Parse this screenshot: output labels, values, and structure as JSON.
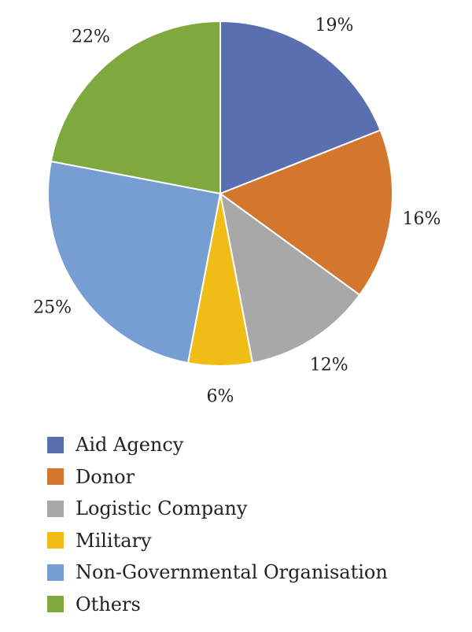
{
  "chart_data": {
    "type": "pie",
    "slices": [
      {
        "label": "Aid Agency",
        "value": 19,
        "value_label": "19%",
        "color": "#5a6fb0"
      },
      {
        "label": "Donor",
        "value": 16,
        "value_label": "16%",
        "color": "#d2772d"
      },
      {
        "label": "Logistic Company",
        "value": 12,
        "value_label": "12%",
        "color": "#a8a8a8"
      },
      {
        "label": "Military",
        "value": 6,
        "value_label": "6%",
        "color": "#efbd16"
      },
      {
        "label": "Non-Governmental Organisation",
        "value": 25,
        "value_label": "25%",
        "color": "#779ed3"
      },
      {
        "label": "Others",
        "value": 22,
        "value_label": "22%",
        "color": "#7fa83e"
      }
    ],
    "start_angle": "12 o'clock",
    "direction": "clockwise",
    "legend_position": "bottom",
    "title": ""
  }
}
